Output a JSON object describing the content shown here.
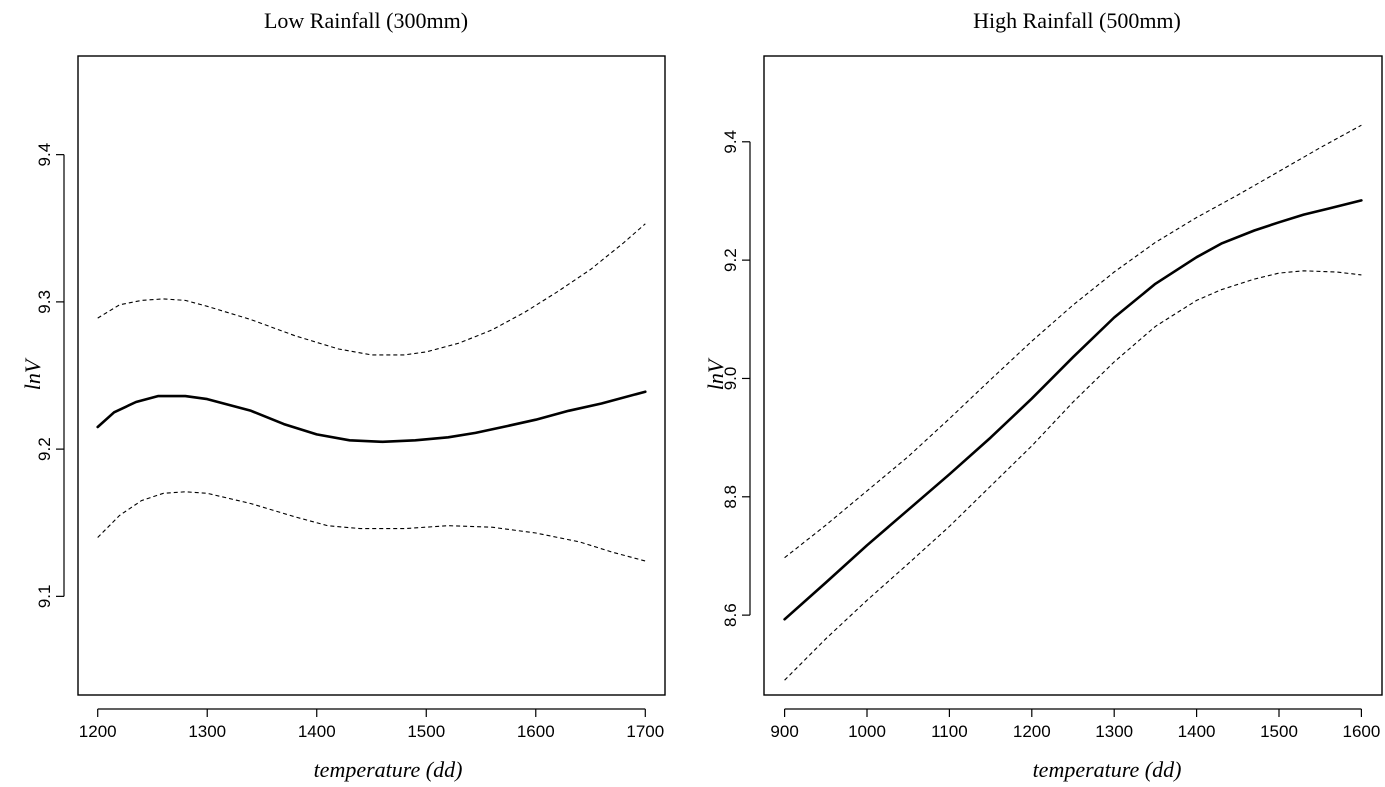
{
  "chart_data": [
    {
      "type": "line",
      "title": "Low Rainfall (300mm)",
      "xlabel": "temperature  (dd)",
      "ylabel": "lnV",
      "xlim": [
        1182,
        1718
      ],
      "ylim": [
        9.033,
        9.467
      ],
      "x_ticks": [
        1200,
        1300,
        1400,
        1500,
        1600,
        1700
      ],
      "y_ticks": [
        9.1,
        9.2,
        9.3,
        9.4
      ],
      "x_tick_labels": [
        "1200",
        "1300",
        "1400",
        "1500",
        "1600",
        "1700"
      ],
      "y_tick_labels": [
        "9.1",
        "9.2",
        "9.3",
        "9.4"
      ],
      "grid": false,
      "series": [
        {
          "role": "fit",
          "x": [
            1200,
            1215,
            1235,
            1255,
            1280,
            1300,
            1340,
            1370,
            1400,
            1430,
            1460,
            1490,
            1520,
            1545,
            1570,
            1600,
            1630,
            1660,
            1700
          ],
          "y": [
            9.215,
            9.225,
            9.232,
            9.236,
            9.236,
            9.234,
            9.226,
            9.217,
            9.21,
            9.206,
            9.205,
            9.206,
            9.208,
            9.211,
            9.215,
            9.22,
            9.226,
            9.231,
            9.239
          ]
        },
        {
          "role": "upper",
          "x": [
            1200,
            1220,
            1240,
            1260,
            1280,
            1300,
            1340,
            1380,
            1420,
            1450,
            1480,
            1500,
            1530,
            1560,
            1590,
            1620,
            1650,
            1680,
            1700
          ],
          "y": [
            9.289,
            9.298,
            9.301,
            9.302,
            9.301,
            9.297,
            9.288,
            9.277,
            9.268,
            9.264,
            9.264,
            9.266,
            9.272,
            9.281,
            9.293,
            9.307,
            9.322,
            9.34,
            9.353
          ]
        },
        {
          "role": "lower",
          "x": [
            1200,
            1220,
            1240,
            1260,
            1280,
            1300,
            1340,
            1380,
            1410,
            1440,
            1480,
            1520,
            1560,
            1600,
            1640,
            1670,
            1700
          ],
          "y": [
            9.14,
            9.155,
            9.165,
            9.17,
            9.171,
            9.17,
            9.163,
            9.154,
            9.148,
            9.146,
            9.146,
            9.148,
            9.147,
            9.143,
            9.137,
            9.13,
            9.124
          ]
        }
      ]
    },
    {
      "type": "line",
      "title": "High Rainfall (500mm)",
      "xlabel": "temperature  (dd)",
      "ylabel": "lnV",
      "xlim": [
        875,
        1625
      ],
      "ylim": [
        8.465,
        9.545
      ],
      "x_ticks": [
        900,
        1000,
        1100,
        1200,
        1300,
        1400,
        1500,
        1600
      ],
      "y_ticks": [
        8.6,
        8.8,
        9.0,
        9.2,
        9.4
      ],
      "x_tick_labels": [
        "900",
        "1000",
        "1100",
        "1200",
        "1300",
        "1400",
        "1500",
        "1600"
      ],
      "y_tick_labels": [
        "8.6",
        "8.8",
        "9.0",
        "9.2",
        "9.4"
      ],
      "grid": false,
      "series": [
        {
          "role": "fit",
          "x": [
            900,
            950,
            1000,
            1050,
            1100,
            1150,
            1200,
            1250,
            1300,
            1350,
            1400,
            1430,
            1470,
            1500,
            1530,
            1560,
            1600
          ],
          "y": [
            8.593,
            8.655,
            8.718,
            8.778,
            8.838,
            8.9,
            8.966,
            9.036,
            9.103,
            9.16,
            9.205,
            9.228,
            9.25,
            9.264,
            9.277,
            9.287,
            9.301
          ]
        },
        {
          "role": "upper",
          "x": [
            900,
            950,
            1000,
            1050,
            1100,
            1150,
            1200,
            1250,
            1300,
            1350,
            1400,
            1450,
            1500,
            1550,
            1600
          ],
          "y": [
            8.697,
            8.752,
            8.81,
            8.868,
            8.932,
            8.998,
            9.063,
            9.124,
            9.18,
            9.23,
            9.272,
            9.31,
            9.35,
            9.39,
            9.428
          ]
        },
        {
          "role": "lower",
          "x": [
            900,
            950,
            1000,
            1050,
            1100,
            1150,
            1200,
            1250,
            1300,
            1350,
            1400,
            1430,
            1470,
            1500,
            1530,
            1570,
            1600
          ],
          "y": [
            8.49,
            8.56,
            8.625,
            8.687,
            8.75,
            8.818,
            8.886,
            8.96,
            9.028,
            9.088,
            9.132,
            9.15,
            9.168,
            9.178,
            9.182,
            9.18,
            9.175
          ]
        }
      ]
    }
  ]
}
